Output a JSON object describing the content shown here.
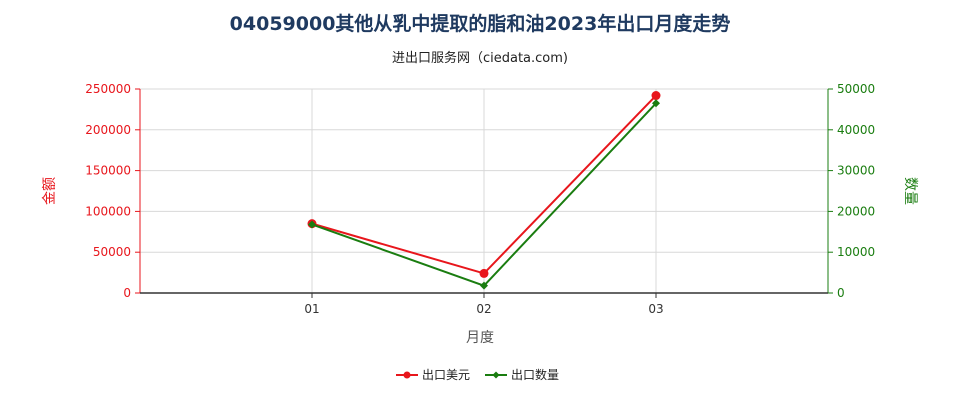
{
  "title": "04059000其他从乳中提取的脂和油2023年出口月度走势",
  "subtitle": "进出口服务网（ciedata.com)",
  "colors": {
    "amount": "#e8161c",
    "quantity": "#1a7d10",
    "grid": "#d8d8d8",
    "axis": "#666666"
  },
  "chart_data": {
    "type": "line",
    "xlabel": "月度",
    "categories": [
      "01",
      "02",
      "03"
    ],
    "y_left": {
      "label": "金额",
      "lim": [
        0,
        250000
      ],
      "ticks": [
        "0",
        "50000",
        "100000",
        "150000",
        "200000",
        "250000"
      ]
    },
    "y_right": {
      "label": "数量",
      "lim": [
        0,
        50000
      ],
      "ticks": [
        "0",
        "10000",
        "20000",
        "30000",
        "40000",
        "50000"
      ]
    },
    "series": [
      {
        "name": "出口美元",
        "axis": "left",
        "values": [
          85000,
          24000,
          242000
        ]
      },
      {
        "name": "出口数量",
        "axis": "right",
        "values": [
          16800,
          1800,
          46500
        ]
      }
    ],
    "grid": true,
    "legend": "bottom-center"
  }
}
